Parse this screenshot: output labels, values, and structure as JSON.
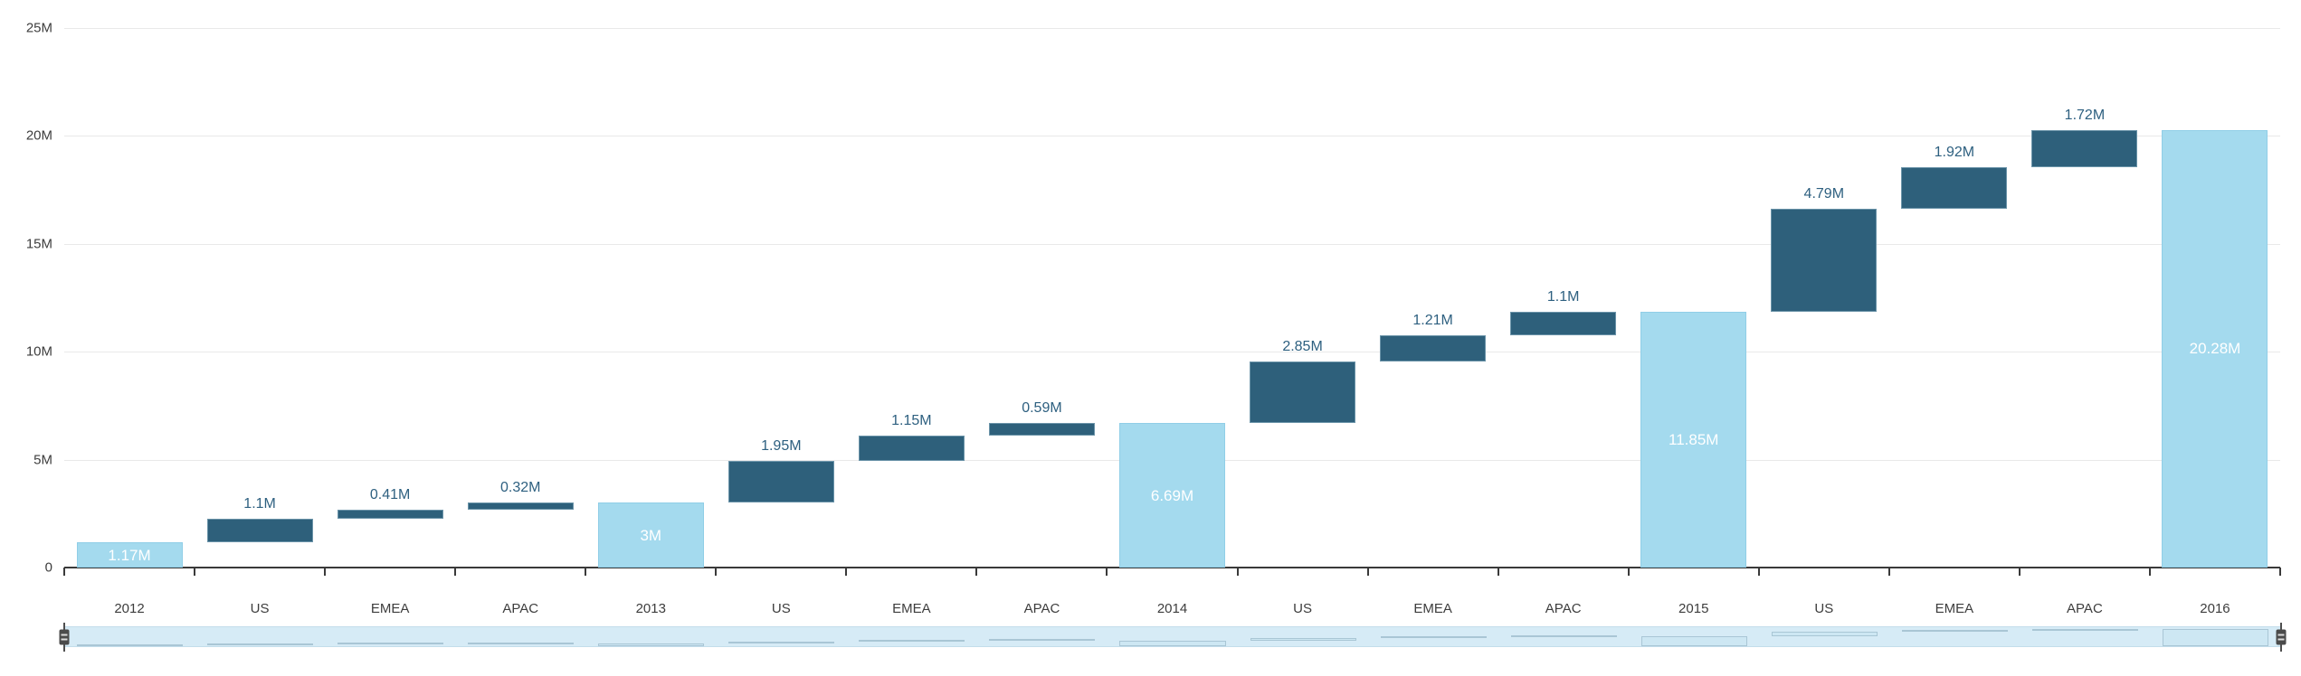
{
  "chart_data": {
    "type": "bar",
    "subtype": "waterfall",
    "title": "",
    "xlabel": "",
    "ylabel": "",
    "grid": true,
    "legend": "none",
    "y_axis": {
      "min": 0,
      "max": 25,
      "unit": "M",
      "tick_values": [
        0,
        5,
        10,
        15,
        20,
        25
      ],
      "tick_labels": [
        "0",
        "5M",
        "10M",
        "15M",
        "20M",
        "25M"
      ]
    },
    "categories": [
      "2012",
      "US",
      "EMEA",
      "APAC",
      "2013",
      "US",
      "EMEA",
      "APAC",
      "2014",
      "US",
      "EMEA",
      "APAC",
      "2015",
      "US",
      "EMEA",
      "APAC",
      "2016"
    ],
    "columns": [
      {
        "category": "2012",
        "kind": "total",
        "value": 1.17,
        "open": 0,
        "close": 1.17,
        "label": "1.17M"
      },
      {
        "category": "US",
        "kind": "delta",
        "value": 1.1,
        "open": 1.17,
        "close": 2.27,
        "label": "1.1M"
      },
      {
        "category": "EMEA",
        "kind": "delta",
        "value": 0.41,
        "open": 2.27,
        "close": 2.68,
        "label": "0.41M"
      },
      {
        "category": "APAC",
        "kind": "delta",
        "value": 0.32,
        "open": 2.68,
        "close": 3,
        "label": "0.32M"
      },
      {
        "category": "2013",
        "kind": "total",
        "value": 3,
        "open": 0,
        "close": 3,
        "label": "3M"
      },
      {
        "category": "US",
        "kind": "delta",
        "value": 1.95,
        "open": 3,
        "close": 4.95,
        "label": "1.95M"
      },
      {
        "category": "EMEA",
        "kind": "delta",
        "value": 1.15,
        "open": 4.95,
        "close": 6.1,
        "label": "1.15M"
      },
      {
        "category": "APAC",
        "kind": "delta",
        "value": 0.59,
        "open": 6.1,
        "close": 6.69,
        "label": "0.59M"
      },
      {
        "category": "2014",
        "kind": "total",
        "value": 6.69,
        "open": 0,
        "close": 6.69,
        "label": "6.69M"
      },
      {
        "category": "US",
        "kind": "delta",
        "value": 2.85,
        "open": 6.69,
        "close": 9.54,
        "label": "2.85M"
      },
      {
        "category": "EMEA",
        "kind": "delta",
        "value": 1.21,
        "open": 9.54,
        "close": 10.75,
        "label": "1.21M"
      },
      {
        "category": "APAC",
        "kind": "delta",
        "value": 1.1,
        "open": 10.75,
        "close": 11.85,
        "label": "1.1M"
      },
      {
        "category": "2015",
        "kind": "total",
        "value": 11.85,
        "open": 0,
        "close": 11.85,
        "label": "11.85M"
      },
      {
        "category": "US",
        "kind": "delta",
        "value": 4.79,
        "open": 11.85,
        "close": 16.64,
        "label": "4.79M"
      },
      {
        "category": "EMEA",
        "kind": "delta",
        "value": 1.92,
        "open": 16.64,
        "close": 18.56,
        "label": "1.92M"
      },
      {
        "category": "APAC",
        "kind": "delta",
        "value": 1.72,
        "open": 18.56,
        "close": 20.28,
        "label": "1.72M"
      },
      {
        "category": "2016",
        "kind": "total",
        "value": 20.28,
        "open": 0,
        "close": 20.28,
        "label": "20.28M"
      }
    ],
    "colors": {
      "total_bar": "#a4daee",
      "delta_bar": "#2e607b",
      "total_label": "#ffffff",
      "delta_label": "#2e6080",
      "axis_text": "#3d3d3d",
      "gridline": "#e9e9e9",
      "axis_line": "#3a3a3a",
      "scrollbar_bg": "#d6ebf6"
    },
    "scrollbar": {
      "position": "bottom",
      "range_start_category": "2012",
      "range_end_category": "2016"
    }
  }
}
